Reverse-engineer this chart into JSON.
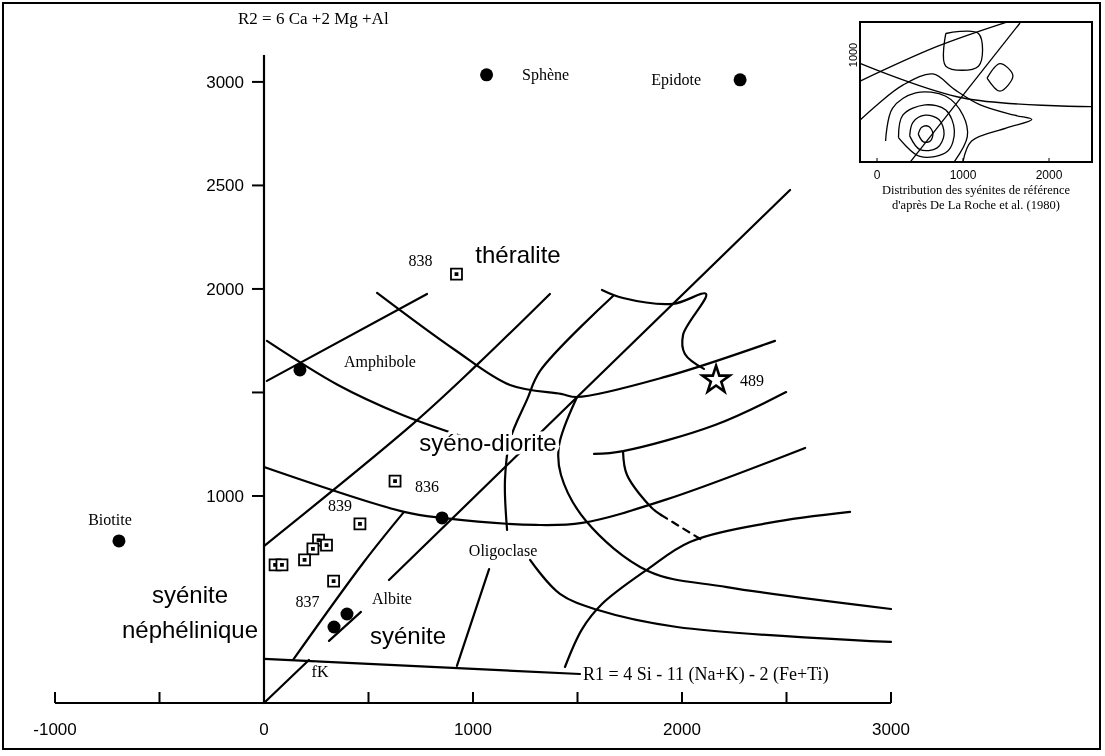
{
  "chart_data": {
    "type": "scatter",
    "xlabel": "R1 = 4 Si - 11 (Na+K) - 2 (Fe+Ti)",
    "ylabel": "R2 = 6 Ca +2 Mg +Al",
    "xlim": [
      -1000,
      3000
    ],
    "ylim": [
      0,
      3130
    ],
    "xticks": [
      -1000,
      {
        "value": -500,
        "label": null
      },
      0,
      {
        "value": 500,
        "label": null
      },
      1000,
      {
        "value": 1500,
        "label": null
      },
      2000,
      {
        "value": 2500,
        "label": null
      },
      3000
    ],
    "yticks": [
      1000,
      {
        "value": 1500,
        "label": null
      },
      2000,
      2500,
      3000
    ],
    "series": [
      {
        "type": "line",
        "color": "#000000",
        "x": [
          14,
          780
        ],
        "values": [
          1556,
          1976
        ]
      },
      {
        "type": "line",
        "color": "#000000",
        "x": [
          14,
          354,
          651,
          957
        ],
        "values": [
          1749,
          1536,
          1396,
          1285
        ]
      },
      {
        "type": "line",
        "color": "#000000",
        "x": [
          541,
          914,
          1177,
          1421,
          1498,
          1919,
          2445
        ],
        "values": [
          1981,
          1705,
          1536,
          1493,
          1478,
          1575,
          1749
        ]
      },
      {
        "type": "line",
        "color": "#000000",
        "x": [
          1579,
          1718,
          2158,
          2498
        ],
        "values": [
          1203,
          1217,
          1343,
          1502
        ]
      },
      {
        "type": "line",
        "color": "#000000",
        "x": [
          0,
          670,
          852,
          1301,
          1522,
          1919,
          2589
        ],
        "values": [
          1140,
          923,
          894,
          860,
          870,
          981,
          1232
        ]
      },
      {
        "type": "line",
        "color": "#000000",
        "x": [
          0,
          718,
          1019,
          1368
        ],
        "values": [
          758,
          1353,
          1633,
          1976
        ]
      },
      {
        "type": "line",
        "color": "#000000",
        "x": [
          0,
          215
        ],
        "values": [
          0,
          208
        ]
      },
      {
        "type": "line",
        "color": "#000000",
        "x": [
          139,
          478,
          670
        ],
        "values": [
          208,
          681,
          923
        ]
      },
      {
        "type": "line",
        "color": "#000000",
        "x": [
          311,
          464
        ],
        "values": [
          300,
          440
        ]
      },
      {
        "type": "line",
        "color": "#000000",
        "x": [
          1670,
          1321,
          1258,
          1177,
          1153,
          1163
        ],
        "values": [
          1966,
          1604,
          1464,
          1271,
          1077,
          836
        ]
      },
      {
        "type": "line",
        "color": "#000000",
        "x": [
          598,
          2517
        ],
        "values": [
          594,
          2478
        ]
      },
      {
        "type": "line",
        "color": "#000000",
        "x": [
          1617,
          1718,
          1957,
          2115,
          2005,
          2014,
          2105
        ],
        "values": [
          1995,
          1956,
          1928,
          1976,
          1778,
          1686,
          1614
        ]
      },
      {
        "type": "line",
        "color": "#000000",
        "x": [
          1498,
          1411,
          1421,
          1541,
          1837,
          2215,
          3000
        ],
        "values": [
          1478,
          1241,
          1101,
          879,
          638,
          560,
          454
        ]
      },
      {
        "type": "line",
        "color": "#000000",
        "x": [
          1718,
          1737,
          1856,
          1900
        ],
        "values": [
          1213,
          1101,
          942,
          908
        ]
      },
      {
        "type": "line",
        "color": "#000000",
        "line_style": "dashed",
        "x": [
          1900,
          2096
        ],
        "values": [
          908,
          787
        ]
      },
      {
        "type": "line",
        "color": "#000000",
        "x": [
          1440,
          1522,
          1617,
          1837,
          2038,
          2416,
          2804
        ],
        "values": [
          174,
          357,
          478,
          647,
          778,
          870,
          923
        ]
      },
      {
        "type": "line",
        "color": "#000000",
        "x": [
          1273,
          1416,
          1598,
          1976,
          3000
        ],
        "values": [
          691,
          527,
          449,
          367,
          295
        ]
      },
      {
        "type": "line",
        "color": "#000000",
        "x": [
          0,
          1512
        ],
        "values": [
          213,
          140
        ]
      },
      {
        "type": "line",
        "color": "#000000",
        "x": [
          1077,
          923
        ],
        "values": [
          647,
          179
        ]
      },
      {
        "marker": "circle",
        "color": "#000000",
        "x": [
          1065,
          2278,
          172,
          -694,
          852,
          397,
          335
        ],
        "values": [
          3034,
          3010,
          1609,
          783,
          894,
          430,
          367
        ]
      },
      {
        "marker": "square",
        "color": "#000000",
        "x": [
          921,
          627,
          459,
          261,
          299,
          234,
          194,
          53,
          86,
          333
        ],
        "values": [
          2072,
          1072,
          865,
          787,
          763,
          744,
          691,
          667,
          667,
          589
        ]
      },
      {
        "marker": "star",
        "color": "#000000",
        "x": [
          2163
        ],
        "values": [
          1560
        ]
      }
    ],
    "annotations": [
      {
        "text": "Sphène",
        "x": 1065,
        "y": 3034
      },
      {
        "text": "Epidote",
        "x": 2278,
        "y": 3010
      },
      {
        "text": "Amphibole",
        "x": 172,
        "y": 1609
      },
      {
        "text": "Biotite",
        "x": -694,
        "y": 783
      },
      {
        "text": "Oligoclase",
        "x": 852,
        "y": 894
      },
      {
        "text": "Albite",
        "x": 397,
        "y": 430
      },
      {
        "text": "fK",
        "x": 335,
        "y": 367
      },
      {
        "text": "838",
        "x": 921,
        "y": 2072
      },
      {
        "text": "836",
        "x": 627,
        "y": 1072
      },
      {
        "text": "839",
        "x": 459,
        "y": 865
      },
      {
        "text": "837",
        "x": 333,
        "y": 589
      },
      {
        "text": "489",
        "x": 2163,
        "y": 1560
      },
      "théralite",
      "syéno-diorite",
      "syénite",
      "néphélinique",
      "syénite",
      "0",
      "1000",
      "2000",
      "1000",
      "Distribution des syénites de référence",
      "d'après De La Roche et al. (1980)"
    ]
  }
}
